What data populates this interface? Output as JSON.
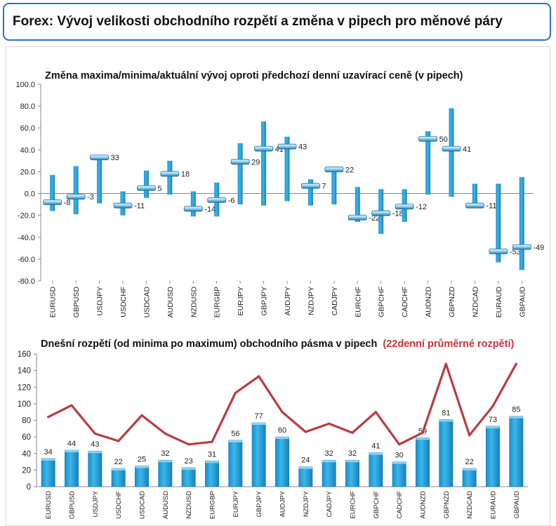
{
  "header": {
    "title": "Forex: Vývoj velikosti obchodního rozpětí a změna v pipech pro měnové páry"
  },
  "colors": {
    "bar": "#1e9fd8",
    "line": "#b83c44",
    "frame": "#2a72c8",
    "highlight": "#c8343c"
  },
  "chart_data": [
    {
      "type": "range",
      "title": "Změna maxima/minima/aktuální vývoj oproti předchozí denní uzavírací ceně (v pipech)",
      "categories": [
        "EURUSD",
        "GBPUSD",
        "USDJPY",
        "USDCHF",
        "USDCAD",
        "AUDUSD",
        "NZDUSD",
        "EURGBP",
        "EURJPY",
        "GBPJPY",
        "AUDJPY",
        "NZDJPY",
        "CADJPY",
        "EURCHF",
        "GBPCHF",
        "CADCHF",
        "AUDNZD",
        "GBPNZD",
        "NZDCAD",
        "EURAUD",
        "GBPAUD"
      ],
      "series": [
        {
          "role": "high",
          "values": [
            17,
            25,
            35,
            2,
            21,
            30,
            2,
            10,
            46,
            66,
            52,
            13,
            22,
            6,
            4,
            4,
            57,
            78,
            9,
            9,
            15
          ]
        },
        {
          "role": "low",
          "values": [
            -16,
            -19,
            -9,
            -20,
            -4,
            -1,
            -21,
            -21,
            -10,
            -11,
            -7,
            -11,
            -10,
            -26,
            -37,
            -26,
            -1,
            -3,
            -12,
            -63,
            -70
          ]
        },
        {
          "role": "current",
          "values": [
            -8,
            -3,
            33,
            -11,
            5,
            18,
            -14,
            -6,
            29,
            41,
            43,
            7,
            22,
            -22,
            -18,
            -12,
            50,
            41,
            -11,
            -53,
            -49
          ]
        }
      ],
      "labels": [
        "-8",
        "-3",
        "33",
        "-11",
        "5",
        "18",
        "-14",
        "-6",
        "29",
        "41",
        "43",
        "7",
        "22",
        "-22",
        "-18",
        "-12",
        "50",
        "41",
        "-11",
        "-53",
        "-49"
      ],
      "yticks": [
        "100.0",
        "80.0",
        "60.0",
        "40.0",
        "20.0",
        "0.0",
        "-20.0",
        "-40.0",
        "-60.0",
        "-80.0"
      ],
      "ylim": [
        -80,
        100
      ],
      "grid": false
    },
    {
      "type": "bar",
      "title": "Dnešní rozpětí (od minima po maximum) obchodního pásma v pipech",
      "title_highlight": "(22denní průměrné rozpětí)",
      "categories": [
        "EURUSD",
        "GBPUSD",
        "USDJPY",
        "USDCHF",
        "USDCAD",
        "AUDUSD",
        "NZDUSD",
        "EURGBP",
        "EURJPY",
        "GBPJPY",
        "AUDJPY",
        "NZDJPY",
        "CADJPY",
        "EURCHF",
        "GBPCHF",
        "CADCHF",
        "AUDNZD",
        "GBPNZD",
        "NZDCAD",
        "EURAUD",
        "GBPAUD"
      ],
      "series": [
        {
          "role": "today",
          "type": "bar",
          "values": [
            34,
            44,
            43,
            22,
            25,
            32,
            23,
            31,
            56,
            77,
            60,
            24,
            32,
            32,
            41,
            30,
            59,
            81,
            22,
            73,
            85
          ]
        },
        {
          "role": "average-22d",
          "type": "line",
          "values": [
            84,
            98,
            64,
            55,
            86,
            64,
            51,
            54,
            113,
            133,
            90,
            66,
            76,
            65,
            90,
            51,
            65,
            148,
            62,
            97,
            148
          ]
        }
      ],
      "labels": [
        "34",
        "44",
        "43",
        "22",
        "25",
        "32",
        "23",
        "31",
        "56",
        "77",
        "60",
        "24",
        "32",
        "32",
        "41",
        "30",
        "59",
        "81",
        "22",
        "73",
        "85"
      ],
      "yticks": [
        "160",
        "140",
        "120",
        "100",
        "80",
        "60",
        "40",
        "20",
        "0"
      ],
      "ylim": [
        0,
        160
      ],
      "grid": false
    }
  ]
}
